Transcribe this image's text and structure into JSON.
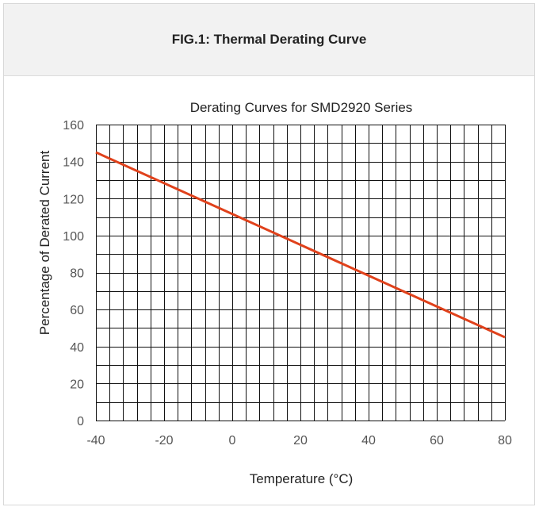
{
  "header": {
    "title": "FIG.1: Thermal Derating Curve"
  },
  "chart_data": {
    "type": "line",
    "title": "Derating Curves for SMD2920 Series",
    "xlabel": "Temperature (°C)",
    "ylabel": "Percentage of Derated Current",
    "xlim": [
      -40,
      80
    ],
    "ylim": [
      0,
      160
    ],
    "x_ticks": [
      -40,
      -20,
      0,
      20,
      40,
      60,
      80
    ],
    "y_ticks": [
      0,
      20,
      40,
      60,
      80,
      100,
      120,
      140,
      160
    ],
    "x_tick_labels": [
      "-40",
      "-20",
      "0",
      "20",
      "40",
      "60",
      "80"
    ],
    "y_tick_labels": [
      "0",
      "20",
      "40",
      "60",
      "80",
      "100",
      "120",
      "140",
      "160"
    ],
    "grid": true,
    "grid_x_step": 4,
    "grid_y_step": 10,
    "series": [
      {
        "x": [
          -40,
          80
        ],
        "y": [
          145,
          45
        ],
        "color": "#e0411b"
      }
    ]
  }
}
